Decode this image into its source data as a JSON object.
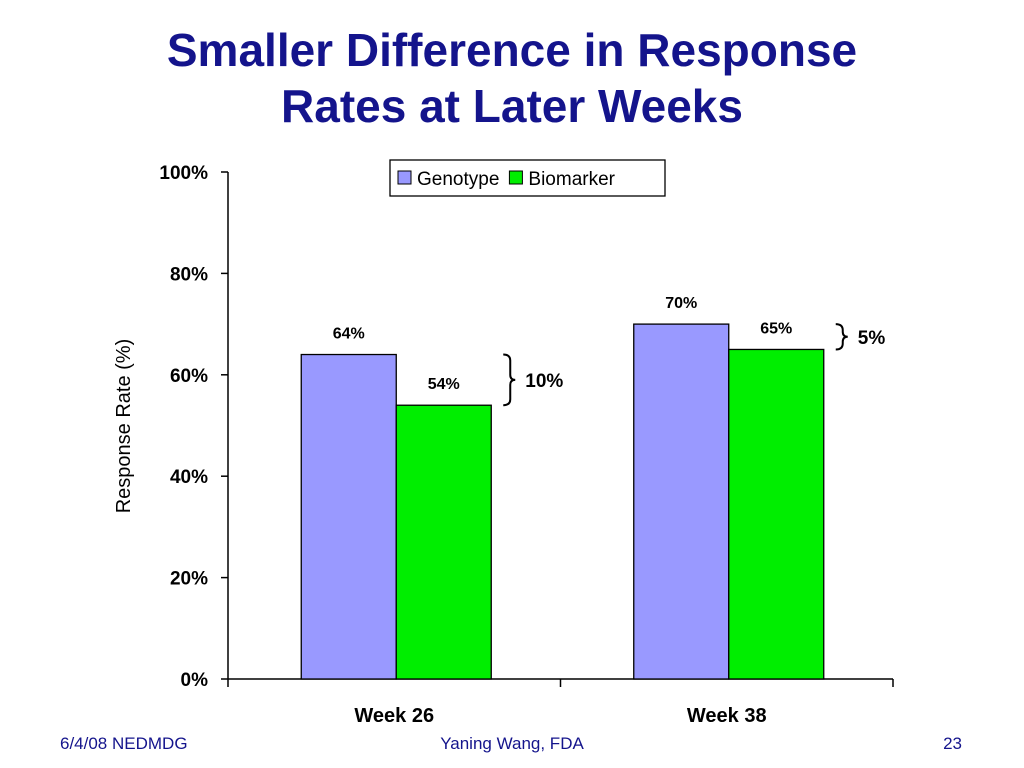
{
  "slide": {
    "title_line1": "Smaller Difference in Response",
    "title_line2": "Rates at Later Weeks"
  },
  "footer": {
    "left": "6/4/08 NEDMDG",
    "center": "Yaning Wang, FDA",
    "right": "23"
  },
  "chart_data": {
    "type": "bar",
    "title": "",
    "xlabel": "",
    "ylabel": "Response Rate (%)",
    "categories": [
      "Week 26",
      "Week 38"
    ],
    "series": [
      {
        "name": "Genotype",
        "values": [
          64,
          70
        ],
        "labels": [
          "64%",
          "70%"
        ],
        "color": "#9999ff"
      },
      {
        "name": "Biomarker",
        "values": [
          54,
          65
        ],
        "labels": [
          "54%",
          "65%"
        ],
        "color": "#00ee00"
      }
    ],
    "ylim": [
      0,
      100
    ],
    "yticks": [
      0,
      20,
      40,
      60,
      80,
      100
    ],
    "ytick_labels": [
      "0%",
      "20%",
      "40%",
      "60%",
      "80%",
      "100%"
    ],
    "grid": false,
    "legend_position": "top-center",
    "annotations": [
      {
        "category": "Week 26",
        "text": "10%"
      },
      {
        "category": "Week 38",
        "text": "5%"
      }
    ]
  }
}
